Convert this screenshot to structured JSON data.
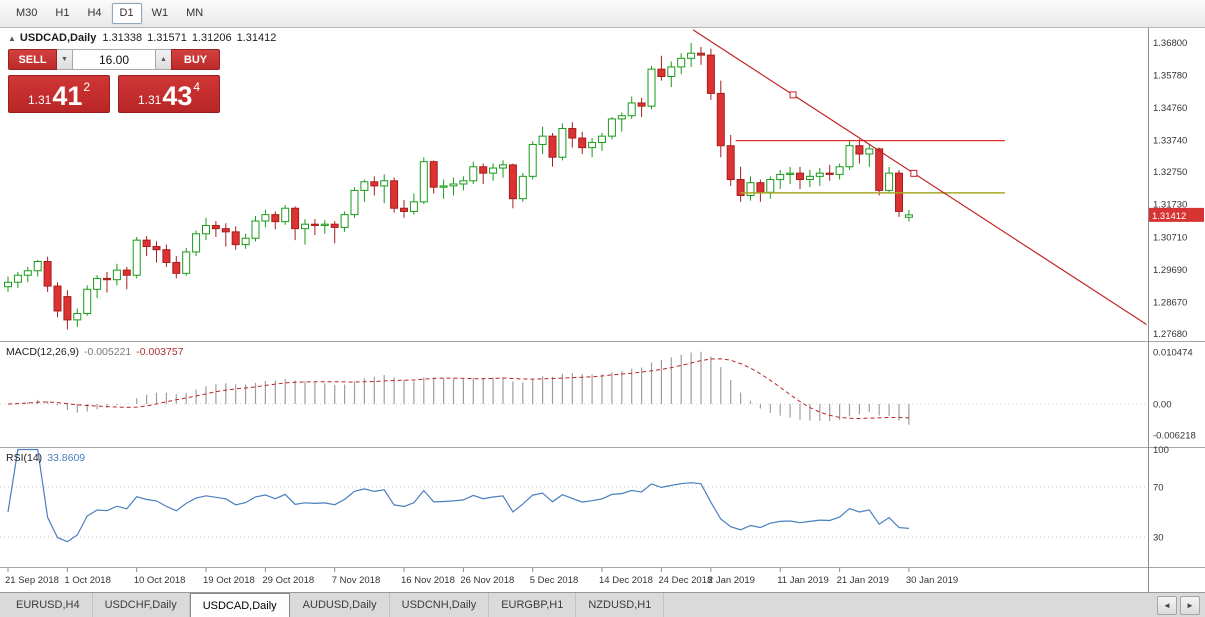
{
  "toolbar": {
    "timeframes": [
      {
        "label": "M30",
        "active": false
      },
      {
        "label": "H1",
        "active": false
      },
      {
        "label": "H4",
        "active": false
      },
      {
        "label": "D1",
        "active": true
      },
      {
        "label": "W1",
        "active": false
      },
      {
        "label": "MN",
        "active": false
      }
    ]
  },
  "chart": {
    "title_symbol": "USDCAD,Daily",
    "ohlc": {
      "open": "1.31338",
      "high": "1.31571",
      "low": "1.31206",
      "close": "1.31412"
    },
    "trade_panel": {
      "sell_label": "SELL",
      "buy_label": "BUY",
      "volume": "16.00",
      "bid": {
        "prefix": "1.31",
        "big": "41",
        "sup": "2"
      },
      "ask": {
        "prefix": "1.31",
        "big": "43",
        "sup": "4"
      }
    },
    "price_axis": [
      "1.36800",
      "1.35780",
      "1.34760",
      "1.33740",
      "1.32750",
      "1.31730",
      "1.30710",
      "1.29690",
      "1.28670",
      "1.27680"
    ],
    "current_price": "1.31412",
    "date_axis": [
      {
        "label": "21 Sep 2018",
        "index": 0
      },
      {
        "label": "1 Oct 2018",
        "index": 6
      },
      {
        "label": "10 Oct 2018",
        "index": 13
      },
      {
        "label": "19 Oct 2018",
        "index": 20
      },
      {
        "label": "29 Oct 2018",
        "index": 26
      },
      {
        "label": "7 Nov 2018",
        "index": 33
      },
      {
        "label": "16 Nov 2018",
        "index": 40
      },
      {
        "label": "26 Nov 2018",
        "index": 46
      },
      {
        "label": "5 Dec 2018",
        "index": 53
      },
      {
        "label": "14 Dec 2018",
        "index": 60
      },
      {
        "label": "24 Dec 2018",
        "index": 66
      },
      {
        "label": "2 Jan 2019",
        "index": 71
      },
      {
        "label": "11 Jan 2019",
        "index": 78
      },
      {
        "label": "21 Jan 2019",
        "index": 84
      },
      {
        "label": "30 Jan 2019",
        "index": 91
      }
    ],
    "colors": {
      "bull_stroke": "#189b18",
      "bull_fill": "#ffffff",
      "bear_stroke": "#a81d1d",
      "bear_fill": "#dd3232",
      "trendline": "#c22222",
      "resistance": "#e03030",
      "support": "#a8a824",
      "price_badge": "#d63333",
      "macd_hist": "#9e9e9e",
      "macd_signal": "#bb2222",
      "rsi_line": "#4a7fbf"
    }
  },
  "macd": {
    "label": "MACD(12,26,9)",
    "value_main": "-0.005221",
    "value_signal": "-0.003757",
    "axis": [
      {
        "label": "0.010474",
        "value": 0.010474
      },
      {
        "label": "0.00",
        "value": 0.0
      },
      {
        "label": "-0.006218",
        "value": -0.006218
      }
    ]
  },
  "rsi": {
    "label": "RSI(14)",
    "value": "33.8609",
    "axis": [
      {
        "label": "100",
        "value": 100
      },
      {
        "label": "70",
        "value": 70
      },
      {
        "label": "30",
        "value": 30
      }
    ]
  },
  "tabs": [
    {
      "label": "EURUSD,H4",
      "active": false
    },
    {
      "label": "USDCHF,Daily",
      "active": false
    },
    {
      "label": "USDCAD,Daily",
      "active": true
    },
    {
      "label": "AUDUSD,Daily",
      "active": false
    },
    {
      "label": "USDCNH,Daily",
      "active": false
    },
    {
      "label": "EURGBP,H1",
      "active": false
    },
    {
      "label": "NZDUSD,H1",
      "active": false
    }
  ],
  "tab_scroll": {
    "left": "◄",
    "right": "►"
  },
  "chart_data": {
    "type": "candlestick",
    "symbol": "USDCAD",
    "timeframe": "Daily",
    "ylim": [
      1.2768,
      1.368
    ],
    "candles": [
      [
        "2018-09-21",
        1.2916,
        1.2948,
        1.29,
        1.293
      ],
      [
        "2018-09-24",
        1.293,
        1.2962,
        1.2912,
        1.2952
      ],
      [
        "2018-09-25",
        1.2952,
        1.2978,
        1.293,
        1.2966
      ],
      [
        "2018-09-26",
        1.2966,
        1.3,
        1.2948,
        1.2995
      ],
      [
        "2018-09-27",
        1.2995,
        1.301,
        1.29,
        1.2918
      ],
      [
        "2018-09-28",
        1.2918,
        1.293,
        1.282,
        1.284
      ],
      [
        "2018-10-01",
        1.2885,
        1.2905,
        1.2782,
        1.2812
      ],
      [
        "2018-10-02",
        1.2812,
        1.2848,
        1.279,
        1.2832
      ],
      [
        "2018-10-03",
        1.2832,
        1.292,
        1.2825,
        1.2908
      ],
      [
        "2018-10-04",
        1.2908,
        1.2952,
        1.288,
        1.2942
      ],
      [
        "2018-10-05",
        1.2942,
        1.2962,
        1.2898,
        1.2938
      ],
      [
        "2018-10-08",
        1.2938,
        1.2988,
        1.292,
        1.2968
      ],
      [
        "2018-10-09",
        1.2968,
        1.2978,
        1.2908,
        1.2952
      ],
      [
        "2018-10-10",
        1.2952,
        1.3072,
        1.2942,
        1.3062
      ],
      [
        "2018-10-11",
        1.3062,
        1.3075,
        1.3012,
        1.3042
      ],
      [
        "2018-10-12",
        1.3042,
        1.3058,
        1.2992,
        1.3032
      ],
      [
        "2018-10-15",
        1.3032,
        1.3048,
        1.2978,
        1.2992
      ],
      [
        "2018-10-16",
        1.2992,
        1.3012,
        1.2942,
        1.2958
      ],
      [
        "2018-10-17",
        1.2958,
        1.3038,
        1.295,
        1.3025
      ],
      [
        "2018-10-18",
        1.3025,
        1.3092,
        1.3012,
        1.3082
      ],
      [
        "2018-10-19",
        1.3082,
        1.3132,
        1.3062,
        1.3108
      ],
      [
        "2018-10-22",
        1.3108,
        1.3122,
        1.3072,
        1.3098
      ],
      [
        "2018-10-23",
        1.3098,
        1.3115,
        1.3042,
        1.3088
      ],
      [
        "2018-10-24",
        1.3088,
        1.3105,
        1.3032,
        1.3048
      ],
      [
        "2018-10-25",
        1.3048,
        1.3082,
        1.3035,
        1.3068
      ],
      [
        "2018-10-26",
        1.3068,
        1.3138,
        1.3058,
        1.3122
      ],
      [
        "2018-10-29",
        1.3122,
        1.3158,
        1.3102,
        1.3142
      ],
      [
        "2018-10-30",
        1.3142,
        1.3152,
        1.3096,
        1.312
      ],
      [
        "2018-10-31",
        1.312,
        1.3172,
        1.311,
        1.3162
      ],
      [
        "2018-11-01",
        1.3162,
        1.3168,
        1.3062,
        1.3098
      ],
      [
        "2018-11-02",
        1.3098,
        1.3128,
        1.3048,
        1.3112
      ],
      [
        "2018-11-05",
        1.3112,
        1.3128,
        1.3078,
        1.3108
      ],
      [
        "2018-11-06",
        1.3108,
        1.3125,
        1.3082,
        1.3112
      ],
      [
        "2018-11-07",
        1.3112,
        1.3122,
        1.3052,
        1.3102
      ],
      [
        "2018-11-08",
        1.3102,
        1.3152,
        1.3088,
        1.3142
      ],
      [
        "2018-11-09",
        1.3142,
        1.3228,
        1.3132,
        1.3218
      ],
      [
        "2018-11-12",
        1.3218,
        1.3252,
        1.3182,
        1.3245
      ],
      [
        "2018-11-13",
        1.3245,
        1.3262,
        1.3202,
        1.3232
      ],
      [
        "2018-11-14",
        1.3232,
        1.3268,
        1.3178,
        1.3248
      ],
      [
        "2018-11-15",
        1.3248,
        1.3258,
        1.3148,
        1.3162
      ],
      [
        "2018-11-16",
        1.3162,
        1.3188,
        1.3132,
        1.3152
      ],
      [
        "2018-11-19",
        1.3152,
        1.3208,
        1.3142,
        1.3182
      ],
      [
        "2018-11-20",
        1.3182,
        1.3322,
        1.3175,
        1.3308
      ],
      [
        "2018-11-21",
        1.3308,
        1.3312,
        1.3208,
        1.3228
      ],
      [
        "2018-11-22",
        1.3228,
        1.3252,
        1.3192,
        1.3232
      ],
      [
        "2018-11-23",
        1.3232,
        1.3258,
        1.3202,
        1.3238
      ],
      [
        "2018-11-26",
        1.3238,
        1.3262,
        1.3218,
        1.3248
      ],
      [
        "2018-11-27",
        1.3248,
        1.3308,
        1.3238,
        1.3292
      ],
      [
        "2018-11-28",
        1.3292,
        1.3302,
        1.3238,
        1.3272
      ],
      [
        "2018-11-29",
        1.3272,
        1.3302,
        1.3248,
        1.3288
      ],
      [
        "2018-11-30",
        1.3288,
        1.3312,
        1.3258,
        1.3298
      ],
      [
        "2018-12-03",
        1.3298,
        1.3302,
        1.3162,
        1.3192
      ],
      [
        "2018-12-04",
        1.3192,
        1.3272,
        1.3182,
        1.3262
      ],
      [
        "2018-12-05",
        1.3262,
        1.3372,
        1.3252,
        1.3362
      ],
      [
        "2018-12-06",
        1.3362,
        1.3418,
        1.3332,
        1.3388
      ],
      [
        "2018-12-07",
        1.3388,
        1.3398,
        1.3292,
        1.3322
      ],
      [
        "2018-12-10",
        1.3322,
        1.3428,
        1.3312,
        1.3412
      ],
      [
        "2018-12-11",
        1.3412,
        1.3432,
        1.3352,
        1.3382
      ],
      [
        "2018-12-12",
        1.3382,
        1.3402,
        1.3332,
        1.3352
      ],
      [
        "2018-12-13",
        1.3352,
        1.3382,
        1.3322,
        1.3368
      ],
      [
        "2018-12-14",
        1.3368,
        1.3398,
        1.3342,
        1.3388
      ],
      [
        "2018-12-17",
        1.3388,
        1.3448,
        1.3378,
        1.3442
      ],
      [
        "2018-12-18",
        1.3442,
        1.3462,
        1.3402,
        1.3452
      ],
      [
        "2018-12-19",
        1.3452,
        1.3512,
        1.3442,
        1.3492
      ],
      [
        "2018-12-20",
        1.3492,
        1.3508,
        1.3448,
        1.3482
      ],
      [
        "2018-12-21",
        1.3482,
        1.3608,
        1.3472,
        1.3598
      ],
      [
        "2018-12-24",
        1.3598,
        1.364,
        1.3562,
        1.3575
      ],
      [
        "2018-12-26",
        1.3575,
        1.3622,
        1.3542,
        1.3605
      ],
      [
        "2018-12-27",
        1.3605,
        1.3648,
        1.3582,
        1.3632
      ],
      [
        "2018-12-28",
        1.3632,
        1.368,
        1.3605,
        1.3648
      ],
      [
        "2018-12-31",
        1.3648,
        1.3668,
        1.3612,
        1.3642
      ],
      [
        "2019-01-02",
        1.3642,
        1.3662,
        1.3502,
        1.3522
      ],
      [
        "2019-01-03",
        1.3522,
        1.3562,
        1.3322,
        1.3358
      ],
      [
        "2019-01-04",
        1.3358,
        1.3392,
        1.3232,
        1.3252
      ],
      [
        "2019-01-07",
        1.3252,
        1.3292,
        1.3182,
        1.3202
      ],
      [
        "2019-01-08",
        1.3202,
        1.3262,
        1.3186,
        1.3242
      ],
      [
        "2019-01-09",
        1.3242,
        1.3252,
        1.3182,
        1.3212
      ],
      [
        "2019-01-10",
        1.3212,
        1.3262,
        1.3192,
        1.3252
      ],
      [
        "2019-01-11",
        1.3252,
        1.3282,
        1.3222,
        1.3268
      ],
      [
        "2019-01-14",
        1.3268,
        1.3292,
        1.3238,
        1.3272
      ],
      [
        "2019-01-15",
        1.3272,
        1.3292,
        1.3222,
        1.3252
      ],
      [
        "2019-01-16",
        1.3252,
        1.3282,
        1.3228,
        1.3262
      ],
      [
        "2019-01-17",
        1.3262,
        1.3288,
        1.3232,
        1.3272
      ],
      [
        "2019-01-18",
        1.3272,
        1.3298,
        1.3248,
        1.3268
      ],
      [
        "2019-01-21",
        1.3268,
        1.3302,
        1.3252,
        1.3292
      ],
      [
        "2019-01-22",
        1.3292,
        1.3372,
        1.3282,
        1.3358
      ],
      [
        "2019-01-23",
        1.3358,
        1.3378,
        1.3302,
        1.3332
      ],
      [
        "2019-01-24",
        1.3332,
        1.3362,
        1.3292,
        1.3348
      ],
      [
        "2019-01-25",
        1.3348,
        1.3352,
        1.3202,
        1.3218
      ],
      [
        "2019-01-28",
        1.3218,
        1.3292,
        1.3208,
        1.3272
      ],
      [
        "2019-01-29",
        1.3272,
        1.3282,
        1.3135,
        1.3152
      ],
      [
        "2019-01-30",
        1.31338,
        1.31571,
        1.31206,
        1.31412
      ]
    ],
    "objects": {
      "trendline": {
        "x1_index": 69.2,
        "price1": 1.3721,
        "x2_index": 115.0,
        "price2": 1.27977,
        "handles": [
          79.3,
          91.5
        ]
      },
      "hlines": [
        {
          "name": "resistance",
          "price": 1.3374,
          "from_index": 73.5,
          "to_index": 100.7
        },
        {
          "name": "support",
          "price": 1.321,
          "from_index": 74.0,
          "to_index": 100.7
        }
      ]
    },
    "indicators": {
      "macd": {
        "fast": 12,
        "slow": 26,
        "signal": 9,
        "current_main": -0.005221,
        "current_signal": -0.003757
      },
      "rsi": {
        "period": 14,
        "current": 33.8609,
        "levels": [
          30,
          70
        ]
      }
    }
  }
}
